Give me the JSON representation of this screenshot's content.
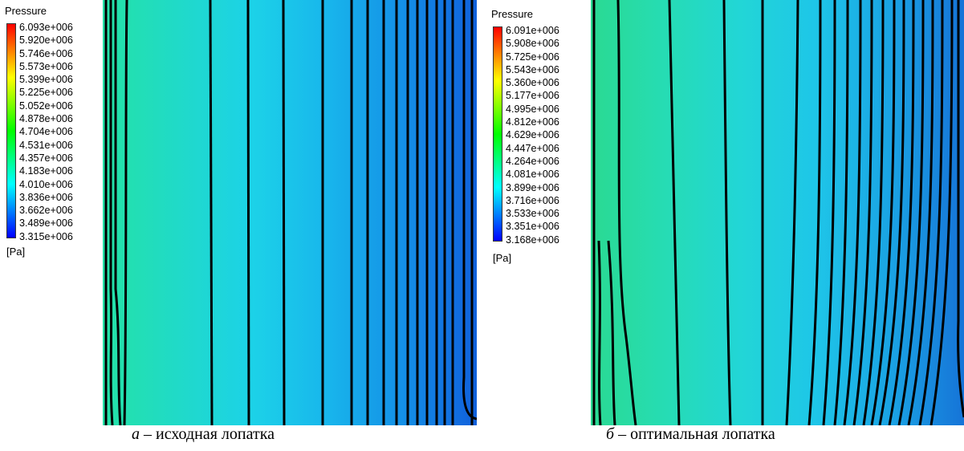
{
  "panels": [
    {
      "id": "a",
      "legend": {
        "title": "Pressure",
        "unit": "[Pa]",
        "values": [
          "6.093e+006",
          "5.920e+006",
          "5.746e+006",
          "5.573e+006",
          "5.399e+006",
          "5.225e+006",
          "5.052e+006",
          "4.878e+006",
          "4.704e+006",
          "4.531e+006",
          "4.357e+006",
          "4.183e+006",
          "4.010e+006",
          "3.836e+006",
          "3.662e+006",
          "3.489e+006",
          "3.315e+006"
        ]
      },
      "caption": {
        "letter": "а",
        "text": " – исходная лопатка"
      }
    },
    {
      "id": "b",
      "legend": {
        "title": "Pressure",
        "unit": "[Pa]",
        "values": [
          "6.091e+006",
          "5.908e+006",
          "5.725e+006",
          "5.543e+006",
          "5.360e+006",
          "5.177e+006",
          "4.995e+006",
          "4.812e+006",
          "4.629e+006",
          "4.447e+006",
          "4.264e+006",
          "4.081e+006",
          "3.899e+006",
          "3.716e+006",
          "3.533e+006",
          "3.351e+006",
          "3.168e+006"
        ]
      },
      "caption": {
        "letter": "б",
        "text": " – оптимальная лопатка"
      }
    }
  ],
  "colors": {
    "field_a": [
      "#24e2a6",
      "#20dac8",
      "#1cd2e8",
      "#18b6ec",
      "#1490e6",
      "#1060dc"
    ],
    "field_b": [
      "#2ada92",
      "#26dcb4",
      "#22d6d6",
      "#1ec6e8",
      "#1aa4e4",
      "#1674d8"
    ],
    "contour": "#000000",
    "scale": [
      "#ff0000",
      "#ff8000",
      "#ffff00",
      "#80ff00",
      "#00ff00",
      "#00ff80",
      "#00ffff",
      "#0080ff",
      "#0000ff"
    ]
  }
}
